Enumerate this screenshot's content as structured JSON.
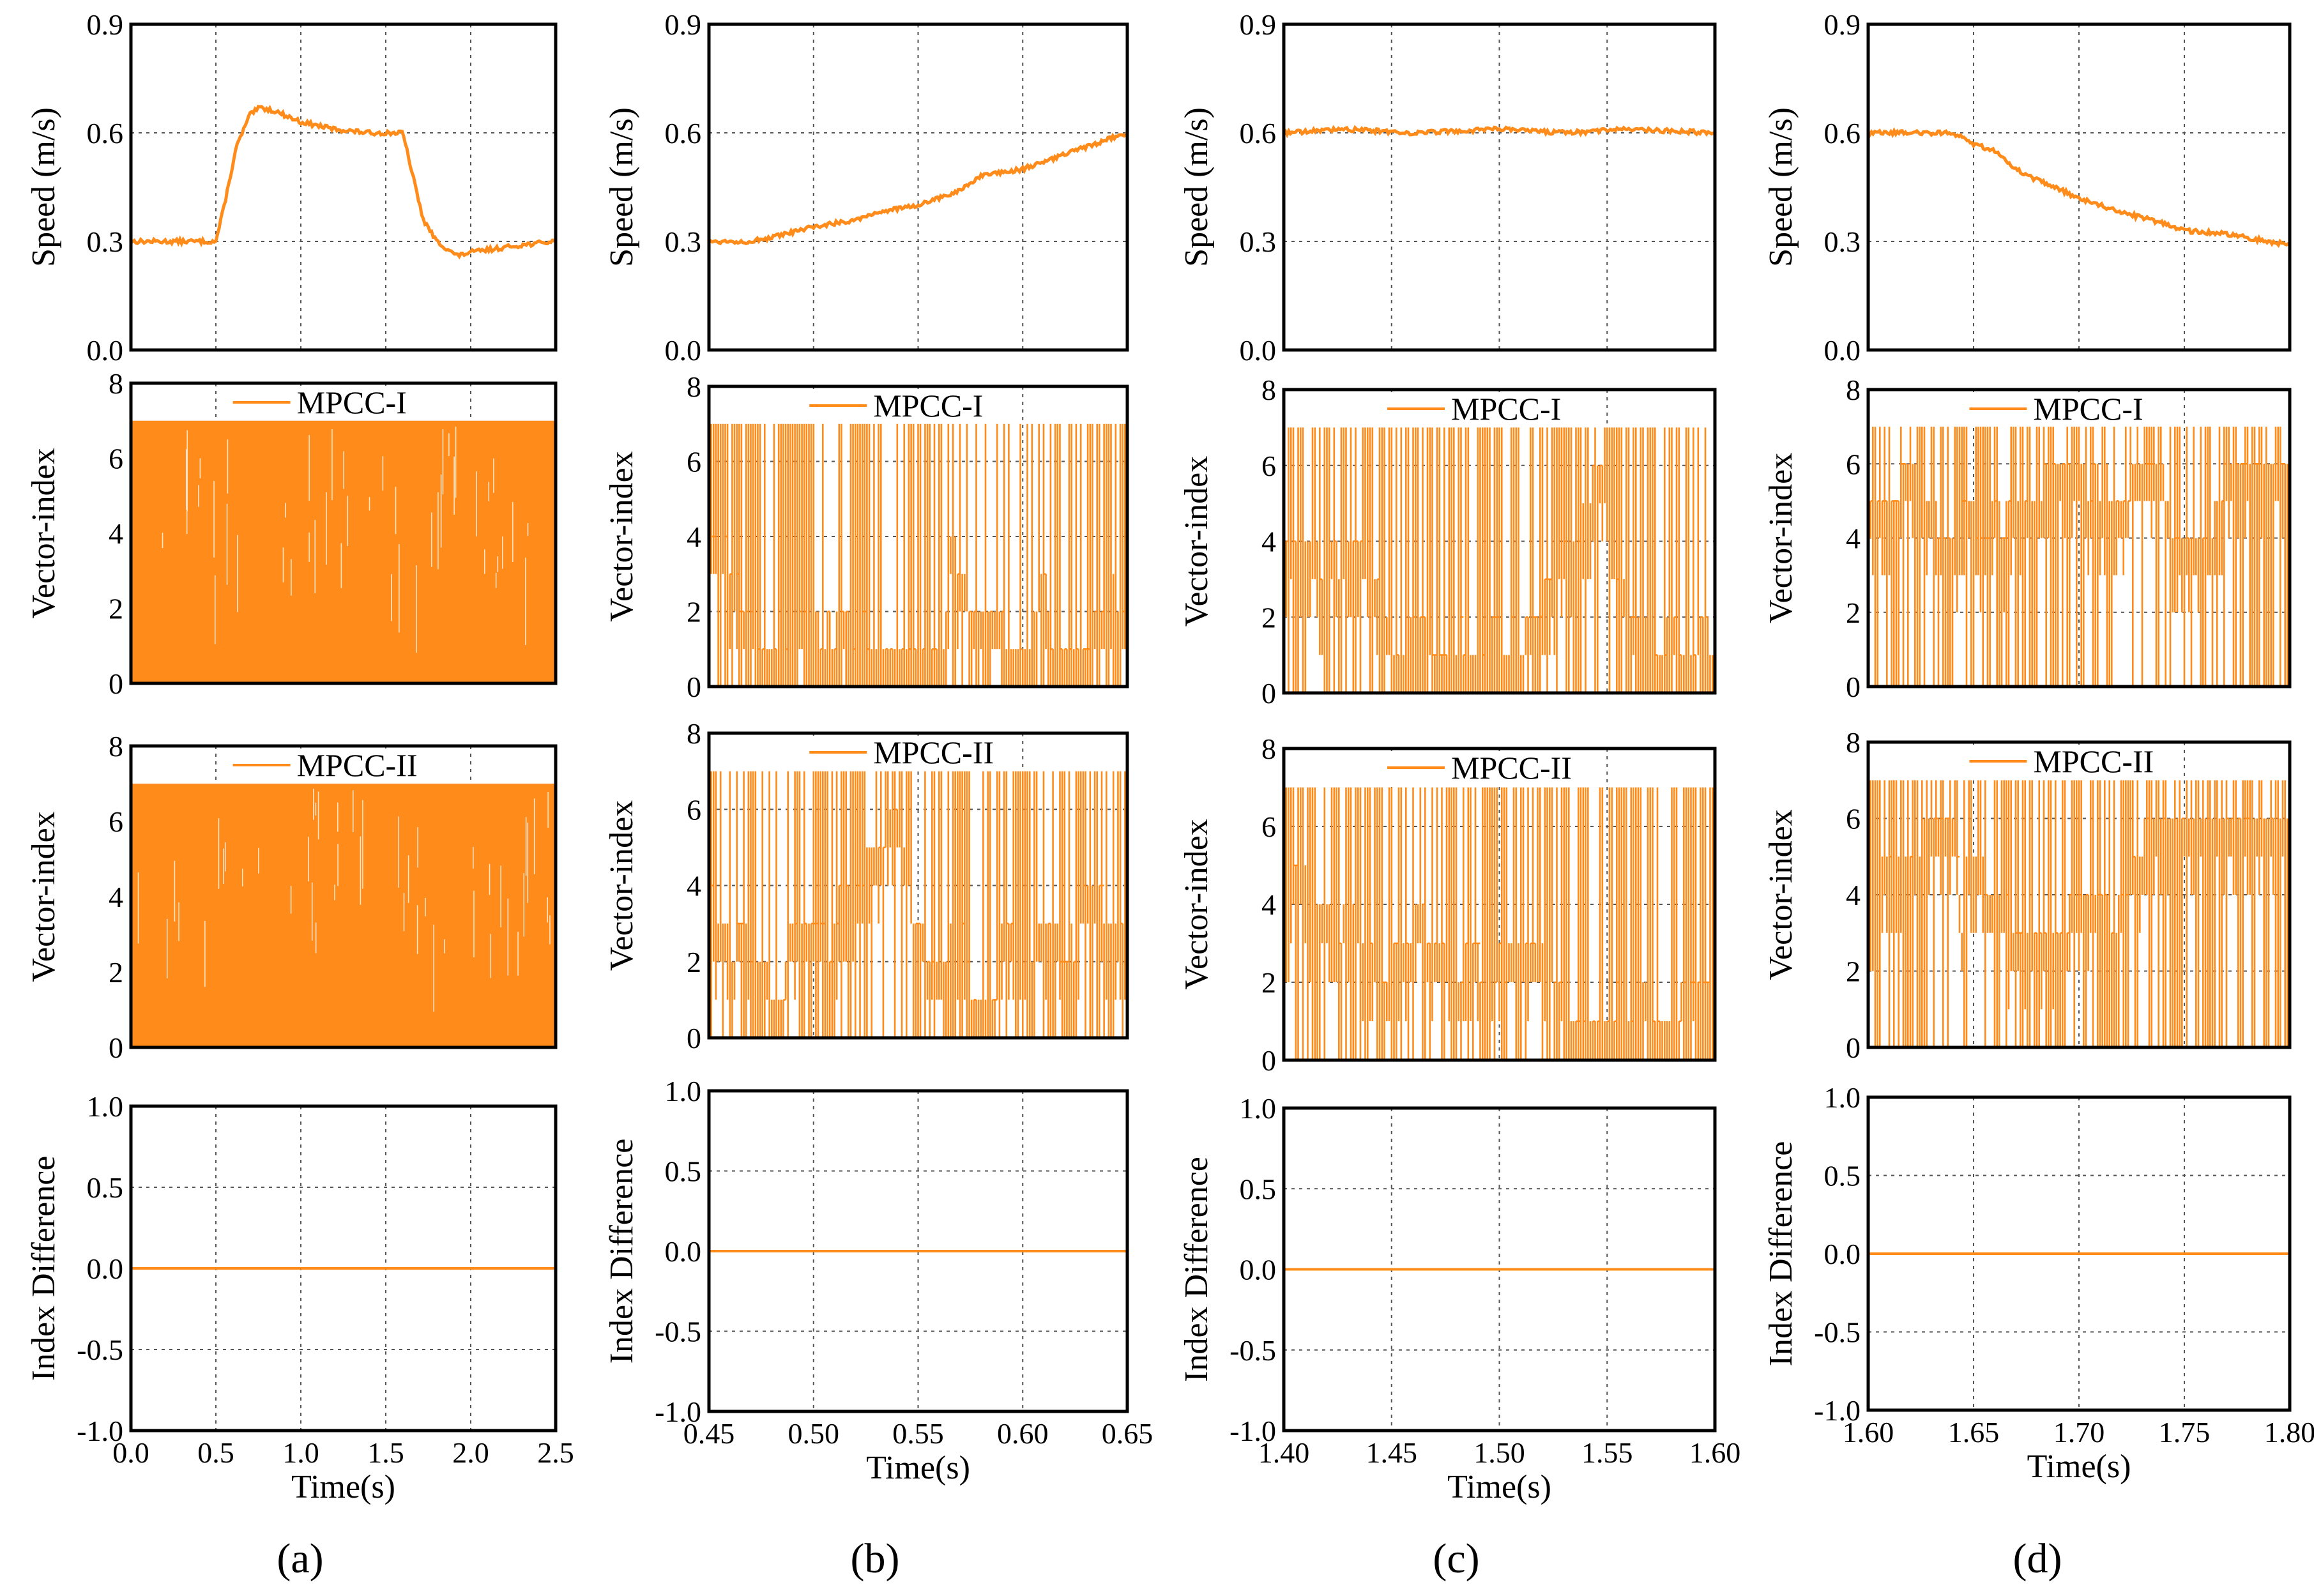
{
  "figure": {
    "panel_labels": [
      "(a)",
      "(b)",
      "(c)",
      "(d)"
    ],
    "panel_letters": [
      "a",
      "b",
      "c",
      "d"
    ],
    "line_color": "#ff8c1a"
  },
  "chart_data": [
    {
      "id": "a-speed",
      "column": "a",
      "type": "line",
      "ylabel": "Speed (m/s)",
      "xlabel": "",
      "legend": "",
      "xlim": [
        0,
        2.5
      ],
      "ylim": [
        0,
        0.9
      ],
      "xticks": [
        0.0,
        0.5,
        1.0,
        1.5,
        2.0,
        2.5
      ],
      "xtick_labels": [],
      "yticks": [
        0.0,
        0.3,
        0.6,
        0.9
      ],
      "ytick_labels": [
        "0.0",
        "0.3",
        "0.6",
        "0.9"
      ],
      "grid": true,
      "series": [
        {
          "x": [
            0,
            0.3,
            0.5,
            0.55,
            0.62,
            0.7,
            0.76,
            0.85,
            1.0,
            1.2,
            1.4,
            1.6,
            1.65,
            1.72,
            1.8,
            1.92,
            2.0,
            2.15,
            2.3,
            2.5
          ],
          "y": [
            0.3,
            0.3,
            0.3,
            0.4,
            0.56,
            0.65,
            0.67,
            0.66,
            0.63,
            0.61,
            0.6,
            0.6,
            0.5,
            0.36,
            0.3,
            0.26,
            0.27,
            0.28,
            0.29,
            0.3
          ]
        }
      ]
    },
    {
      "id": "a-mpcc1",
      "column": "a",
      "type": "line",
      "ylabel": "Vector-index",
      "xlabel": "",
      "legend": "MPCC-I",
      "xlim": [
        0,
        2.5
      ],
      "ylim": [
        0,
        8
      ],
      "xticks": [
        0.0,
        0.5,
        1.0,
        1.5,
        2.0,
        2.5
      ],
      "xtick_labels": [],
      "yticks": [
        0,
        2,
        4,
        6,
        8
      ],
      "ytick_labels": [
        "0",
        "2",
        "4",
        "6",
        "8"
      ],
      "grid": true,
      "fill": "solid",
      "switch_range": [
        0,
        7
      ]
    },
    {
      "id": "a-mpcc2",
      "column": "a",
      "type": "line",
      "ylabel": "Vector-index",
      "xlabel": "",
      "legend": "MPCC-II",
      "xlim": [
        0,
        2.5
      ],
      "ylim": [
        0,
        8
      ],
      "xticks": [
        0.0,
        0.5,
        1.0,
        1.5,
        2.0,
        2.5
      ],
      "xtick_labels": [],
      "yticks": [
        0,
        2,
        4,
        6,
        8
      ],
      "ytick_labels": [
        "0",
        "2",
        "4",
        "6",
        "8"
      ],
      "grid": true,
      "fill": "solid",
      "switch_range": [
        0,
        7
      ]
    },
    {
      "id": "a-diff",
      "column": "a",
      "type": "line",
      "ylabel": "Index Difference",
      "xlabel": "Time(s)",
      "legend": "",
      "xlim": [
        0,
        2.5
      ],
      "ylim": [
        -1,
        1
      ],
      "xticks": [
        0.0,
        0.5,
        1.0,
        1.5,
        2.0,
        2.5
      ],
      "xtick_labels": [
        "0.0",
        "0.5",
        "1.0",
        "1.5",
        "2.0",
        "2.5"
      ],
      "yticks": [
        -1,
        -0.5,
        0,
        0.5,
        1
      ],
      "ytick_labels": [
        "-1.0",
        "-0.5",
        "0.0",
        "0.5",
        "1.0"
      ],
      "grid": true,
      "series": [
        {
          "x": [
            0,
            2.5
          ],
          "y": [
            0,
            0
          ]
        }
      ]
    },
    {
      "id": "b-speed",
      "column": "b",
      "type": "line",
      "ylabel": "Speed (m/s)",
      "xlabel": "",
      "legend": "",
      "xlim": [
        0.45,
        0.65
      ],
      "ylim": [
        0,
        0.9
      ],
      "xticks": [
        0.45,
        0.5,
        0.55,
        0.6,
        0.65
      ],
      "xtick_labels": [],
      "yticks": [
        0.0,
        0.3,
        0.6,
        0.9
      ],
      "ytick_labels": [
        "0.0",
        "0.3",
        "0.6",
        "0.9"
      ],
      "grid": true,
      "series": [
        {
          "x": [
            0.45,
            0.46,
            0.47,
            0.48,
            0.5,
            0.52,
            0.53,
            0.55,
            0.57,
            0.58,
            0.6,
            0.62,
            0.64,
            0.65
          ],
          "y": [
            0.3,
            0.3,
            0.3,
            0.31,
            0.34,
            0.36,
            0.38,
            0.4,
            0.44,
            0.48,
            0.5,
            0.54,
            0.58,
            0.6
          ]
        }
      ]
    },
    {
      "id": "b-mpcc1",
      "column": "b",
      "type": "line",
      "ylabel": "Vector-index",
      "xlabel": "",
      "legend": "MPCC-I",
      "xlim": [
        0.45,
        0.65
      ],
      "ylim": [
        0,
        8
      ],
      "xticks": [
        0.45,
        0.5,
        0.55,
        0.6,
        0.65
      ],
      "xtick_labels": [],
      "yticks": [
        0,
        2,
        4,
        6,
        8
      ],
      "ytick_labels": [
        "0",
        "2",
        "4",
        "6",
        "8"
      ],
      "grid": true,
      "fill": "switching",
      "switch_range": [
        0,
        7
      ]
    },
    {
      "id": "b-mpcc2",
      "column": "b",
      "type": "line",
      "ylabel": "Vector-index",
      "xlabel": "",
      "legend": "MPCC-II",
      "xlim": [
        0.45,
        0.65
      ],
      "ylim": [
        0,
        8
      ],
      "xticks": [
        0.45,
        0.5,
        0.55,
        0.6,
        0.65
      ],
      "xtick_labels": [],
      "yticks": [
        0,
        2,
        4,
        6,
        8
      ],
      "ytick_labels": [
        "0",
        "2",
        "4",
        "6",
        "8"
      ],
      "grid": true,
      "fill": "switching",
      "switch_range": [
        0,
        7
      ]
    },
    {
      "id": "b-diff",
      "column": "b",
      "type": "line",
      "ylabel": "Index Difference",
      "xlabel": "Time(s)",
      "legend": "",
      "xlim": [
        0.45,
        0.65
      ],
      "ylim": [
        -1,
        1
      ],
      "xticks": [
        0.45,
        0.5,
        0.55,
        0.6,
        0.65
      ],
      "xtick_labels": [
        "0.45",
        "0.50",
        "0.55",
        "0.60",
        "0.65"
      ],
      "yticks": [
        -1,
        -0.5,
        0,
        0.5,
        1
      ],
      "ytick_labels": [
        "-1.0",
        "-0.5",
        "0.0",
        "0.5",
        "1.0"
      ],
      "grid": true,
      "series": [
        {
          "x": [
            0.45,
            0.65
          ],
          "y": [
            0,
            0
          ]
        }
      ]
    },
    {
      "id": "c-speed",
      "column": "c",
      "type": "line",
      "ylabel": "Speed (m/s)",
      "xlabel": "",
      "legend": "",
      "xlim": [
        1.4,
        1.6
      ],
      "ylim": [
        0,
        0.9
      ],
      "xticks": [
        1.4,
        1.45,
        1.5,
        1.55,
        1.6
      ],
      "xtick_labels": [],
      "yticks": [
        0.0,
        0.3,
        0.6,
        0.9
      ],
      "ytick_labels": [
        "0.0",
        "0.3",
        "0.6",
        "0.9"
      ],
      "grid": true,
      "series": [
        {
          "x": [
            1.4,
            1.43,
            1.46,
            1.5,
            1.53,
            1.56,
            1.6
          ],
          "y": [
            0.6,
            0.61,
            0.6,
            0.61,
            0.6,
            0.61,
            0.6
          ]
        }
      ]
    },
    {
      "id": "c-mpcc1",
      "column": "c",
      "type": "line",
      "ylabel": "Vector-index",
      "xlabel": "",
      "legend": "MPCC-I",
      "xlim": [
        1.4,
        1.6
      ],
      "ylim": [
        0,
        8
      ],
      "xticks": [
        1.4,
        1.45,
        1.5,
        1.55,
        1.6
      ],
      "xtick_labels": [],
      "yticks": [
        0,
        2,
        4,
        6,
        8
      ],
      "ytick_labels": [
        "0",
        "2",
        "4",
        "6",
        "8"
      ],
      "grid": true,
      "fill": "switching",
      "switch_range": [
        0,
        7
      ]
    },
    {
      "id": "c-mpcc2",
      "column": "c",
      "type": "line",
      "ylabel": "Vector-index",
      "xlabel": "",
      "legend": "MPCC-II",
      "xlim": [
        1.4,
        1.6
      ],
      "ylim": [
        0,
        8
      ],
      "xticks": [
        1.4,
        1.45,
        1.5,
        1.55,
        1.6
      ],
      "xtick_labels": [],
      "yticks": [
        0,
        2,
        4,
        6,
        8
      ],
      "ytick_labels": [
        "0",
        "2",
        "4",
        "6",
        "8"
      ],
      "grid": true,
      "fill": "switching",
      "switch_range": [
        0,
        7
      ]
    },
    {
      "id": "c-diff",
      "column": "c",
      "type": "line",
      "ylabel": "Index Difference",
      "xlabel": "Time(s)",
      "legend": "",
      "xlim": [
        1.4,
        1.6
      ],
      "ylim": [
        -1,
        1
      ],
      "xticks": [
        1.4,
        1.45,
        1.5,
        1.55,
        1.6
      ],
      "xtick_labels": [
        "1.40",
        "1.45",
        "1.50",
        "1.55",
        "1.60"
      ],
      "yticks": [
        -1,
        -0.5,
        0,
        0.5,
        1
      ],
      "ytick_labels": [
        "-1.0",
        "-0.5",
        "0.0",
        "0.5",
        "1.0"
      ],
      "grid": true,
      "series": [
        {
          "x": [
            1.4,
            1.6
          ],
          "y": [
            0,
            0
          ]
        }
      ]
    },
    {
      "id": "d-speed",
      "column": "d",
      "type": "line",
      "ylabel": "Speed (m/s)",
      "xlabel": "",
      "legend": "",
      "xlim": [
        1.6,
        1.8
      ],
      "ylim": [
        0,
        0.9
      ],
      "xticks": [
        1.6,
        1.65,
        1.7,
        1.75,
        1.8
      ],
      "xtick_labels": [],
      "yticks": [
        0.0,
        0.3,
        0.6,
        0.9
      ],
      "ytick_labels": [
        "0.0",
        "0.3",
        "0.6",
        "0.9"
      ],
      "grid": true,
      "series": [
        {
          "x": [
            1.6,
            1.62,
            1.64,
            1.65,
            1.66,
            1.67,
            1.68,
            1.7,
            1.72,
            1.74,
            1.75,
            1.77,
            1.79,
            1.8
          ],
          "y": [
            0.6,
            0.6,
            0.6,
            0.57,
            0.55,
            0.5,
            0.47,
            0.42,
            0.38,
            0.35,
            0.33,
            0.32,
            0.3,
            0.29
          ]
        }
      ]
    },
    {
      "id": "d-mpcc1",
      "column": "d",
      "type": "line",
      "ylabel": "Vector-index",
      "xlabel": "",
      "legend": "MPCC-I",
      "xlim": [
        1.6,
        1.8
      ],
      "ylim": [
        0,
        8
      ],
      "xticks": [
        1.6,
        1.65,
        1.7,
        1.75,
        1.8
      ],
      "xtick_labels": [],
      "yticks": [
        0,
        2,
        4,
        6,
        8
      ],
      "ytick_labels": [
        "0",
        "2",
        "4",
        "6",
        "8"
      ],
      "grid": true,
      "fill": "switching",
      "switch_range": [
        0,
        7
      ]
    },
    {
      "id": "d-mpcc2",
      "column": "d",
      "type": "line",
      "ylabel": "Vector-index",
      "xlabel": "",
      "legend": "MPCC-II",
      "xlim": [
        1.6,
        1.8
      ],
      "ylim": [
        0,
        8
      ],
      "xticks": [
        1.6,
        1.65,
        1.7,
        1.75,
        1.8
      ],
      "xtick_labels": [],
      "yticks": [
        0,
        2,
        4,
        6,
        8
      ],
      "ytick_labels": [
        "0",
        "2",
        "4",
        "6",
        "8"
      ],
      "grid": true,
      "fill": "switching",
      "switch_range": [
        0,
        7
      ]
    },
    {
      "id": "d-diff",
      "column": "d",
      "type": "line",
      "ylabel": "Index Difference",
      "xlabel": "Time(s)",
      "legend": "",
      "xlim": [
        1.6,
        1.8
      ],
      "ylim": [
        -1,
        1
      ],
      "xticks": [
        1.6,
        1.65,
        1.7,
        1.75,
        1.8
      ],
      "xtick_labels": [
        "1.60",
        "1.65",
        "1.70",
        "1.75",
        "1.80"
      ],
      "yticks": [
        -1,
        -0.5,
        0,
        0.5,
        1
      ],
      "ytick_labels": [
        "-1.0",
        "-0.5",
        "0.0",
        "0.5",
        "1.0"
      ],
      "grid": true,
      "series": [
        {
          "x": [
            1.6,
            1.8
          ],
          "y": [
            0,
            0
          ]
        }
      ]
    }
  ]
}
